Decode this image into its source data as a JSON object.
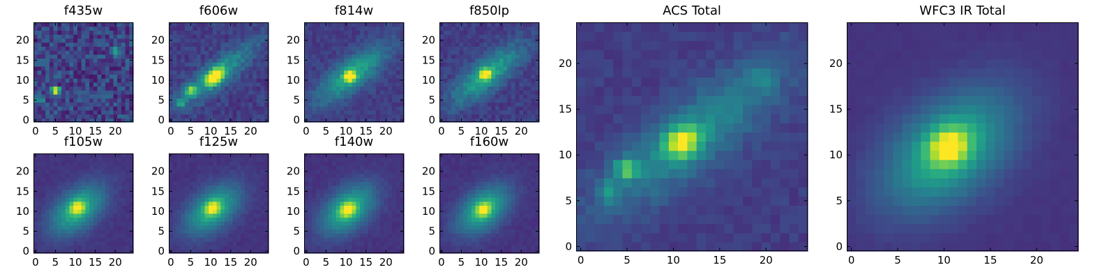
{
  "figure": {
    "titles": {
      "f435w": "f435w",
      "f606w": "f606w",
      "f814w": "f814w",
      "f850lp": "f850lp",
      "f105w": "f105w",
      "f125w": "f125w",
      "f140w": "f140w",
      "f160w": "f160w",
      "acs_total": "ACS Total",
      "wfc3_total": "WFC3 IR Total"
    }
  },
  "chart_data": [
    {
      "type": "heatmap",
      "title": "f435w",
      "colormap": "viridis",
      "grid_size": 25,
      "x_ticks": [
        0,
        5,
        10,
        15,
        20
      ],
      "y_ticks": [
        0,
        5,
        10,
        15,
        20
      ],
      "xlim": [
        0,
        25
      ],
      "ylim": [
        0,
        25
      ],
      "sources": [
        {
          "x": 5.5,
          "y": 8,
          "amp": 0.85,
          "sx": 0.9,
          "sy": 0.6,
          "angle": 0
        },
        {
          "x": 20.5,
          "y": 18,
          "amp": 0.5,
          "sx": 0.8,
          "sy": 0.8,
          "angle": 0
        },
        {
          "x": 1.5,
          "y": 5.5,
          "amp": 0.35,
          "sx": 0.8,
          "sy": 0.8,
          "angle": 0
        }
      ],
      "background": 0.2,
      "noise": 0.14
    },
    {
      "type": "heatmap",
      "title": "f606w",
      "colormap": "viridis",
      "grid_size": 25,
      "x_ticks": [
        0,
        5,
        10,
        15,
        20
      ],
      "y_ticks": [
        0,
        5,
        10,
        15,
        20
      ],
      "xlim": [
        0,
        25
      ],
      "ylim": [
        0,
        25
      ],
      "sources": [
        {
          "x": 11.5,
          "y": 11.5,
          "amp": 0.7,
          "sx": 1.8,
          "sy": 1.2,
          "angle": 40
        },
        {
          "x": 5.5,
          "y": 8,
          "amp": 0.55,
          "sx": 1.0,
          "sy": 0.8,
          "angle": 0
        },
        {
          "x": 3,
          "y": 5,
          "amp": 0.35,
          "sx": 0.8,
          "sy": 0.8,
          "angle": 0
        },
        {
          "x": 12,
          "y": 12,
          "amp": 0.35,
          "sx": 8.5,
          "sy": 2.2,
          "angle": 38
        }
      ],
      "background": 0.18,
      "noise": 0.07
    },
    {
      "type": "heatmap",
      "title": "f814w",
      "colormap": "viridis",
      "grid_size": 25,
      "x_ticks": [
        0,
        5,
        10,
        15,
        20
      ],
      "y_ticks": [
        0,
        5,
        10,
        15,
        20
      ],
      "xlim": [
        0,
        25
      ],
      "ylim": [
        0,
        25
      ],
      "sources": [
        {
          "x": 11.5,
          "y": 11.5,
          "amp": 0.7,
          "sx": 1.0,
          "sy": 0.9,
          "angle": 0
        },
        {
          "x": 12,
          "y": 12,
          "amp": 0.42,
          "sx": 7.5,
          "sy": 2.6,
          "angle": 38
        }
      ],
      "background": 0.18,
      "noise": 0.05
    },
    {
      "type": "heatmap",
      "title": "f850lp",
      "colormap": "viridis",
      "grid_size": 25,
      "x_ticks": [
        0,
        5,
        10,
        15,
        20
      ],
      "y_ticks": [
        0,
        5,
        10,
        15,
        20
      ],
      "xlim": [
        0,
        25
      ],
      "ylim": [
        0,
        25
      ],
      "sources": [
        {
          "x": 11.5,
          "y": 12,
          "amp": 0.7,
          "sx": 1.0,
          "sy": 0.9,
          "angle": 0
        },
        {
          "x": 12,
          "y": 12,
          "amp": 0.42,
          "sx": 7.5,
          "sy": 2.6,
          "angle": 38
        }
      ],
      "background": 0.18,
      "noise": 0.06
    },
    {
      "type": "heatmap",
      "title": "f105w",
      "colormap": "viridis",
      "grid_size": 25,
      "x_ticks": [
        0,
        5,
        10,
        15,
        20
      ],
      "y_ticks": [
        0,
        5,
        10,
        15,
        20
      ],
      "xlim": [
        0,
        25
      ],
      "ylim": [
        0,
        25
      ],
      "sources": [
        {
          "x": 11,
          "y": 11.5,
          "amp": 0.5,
          "sx": 1.3,
          "sy": 1.1,
          "angle": 30
        },
        {
          "x": 11,
          "y": 11,
          "amp": 0.5,
          "sx": 5.5,
          "sy": 3.2,
          "angle": 40
        }
      ],
      "background": 0.15,
      "noise": 0.025
    },
    {
      "type": "heatmap",
      "title": "f125w",
      "colormap": "viridis",
      "grid_size": 25,
      "x_ticks": [
        0,
        5,
        10,
        15,
        20
      ],
      "y_ticks": [
        0,
        5,
        10,
        15,
        20
      ],
      "xlim": [
        0,
        25
      ],
      "ylim": [
        0,
        25
      ],
      "sources": [
        {
          "x": 11,
          "y": 11.5,
          "amp": 0.5,
          "sx": 1.3,
          "sy": 1.1,
          "angle": 30
        },
        {
          "x": 11,
          "y": 11,
          "amp": 0.5,
          "sx": 5.5,
          "sy": 3.2,
          "angle": 40
        }
      ],
      "background": 0.15,
      "noise": 0.025
    },
    {
      "type": "heatmap",
      "title": "f140w",
      "colormap": "viridis",
      "grid_size": 25,
      "x_ticks": [
        0,
        5,
        10,
        15,
        20
      ],
      "y_ticks": [
        0,
        5,
        10,
        15,
        20
      ],
      "xlim": [
        0,
        25
      ],
      "ylim": [
        0,
        25
      ],
      "sources": [
        {
          "x": 11,
          "y": 11,
          "amp": 0.5,
          "sx": 1.4,
          "sy": 1.2,
          "angle": 30
        },
        {
          "x": 11,
          "y": 11,
          "amp": 0.5,
          "sx": 5.5,
          "sy": 3.3,
          "angle": 40
        }
      ],
      "background": 0.15,
      "noise": 0.025
    },
    {
      "type": "heatmap",
      "title": "f160w",
      "colormap": "viridis",
      "grid_size": 25,
      "x_ticks": [
        0,
        5,
        10,
        15,
        20
      ],
      "y_ticks": [
        0,
        5,
        10,
        15,
        20
      ],
      "xlim": [
        0,
        25
      ],
      "ylim": [
        0,
        25
      ],
      "sources": [
        {
          "x": 11,
          "y": 11,
          "amp": 0.5,
          "sx": 1.3,
          "sy": 1.1,
          "angle": 30
        },
        {
          "x": 11,
          "y": 11,
          "amp": 0.5,
          "sx": 5.3,
          "sy": 3.2,
          "angle": 40
        }
      ],
      "background": 0.15,
      "noise": 0.025
    },
    {
      "type": "heatmap",
      "title": "ACS Total",
      "colormap": "viridis",
      "grid_size": 25,
      "x_ticks": [
        0,
        5,
        10,
        15,
        20
      ],
      "y_ticks": [
        0,
        5,
        10,
        15,
        20
      ],
      "xlim": [
        0,
        25
      ],
      "ylim": [
        0,
        25
      ],
      "sources": [
        {
          "x": 11.5,
          "y": 12,
          "amp": 0.62,
          "sx": 1.4,
          "sy": 1.1,
          "angle": 30
        },
        {
          "x": 5.5,
          "y": 9,
          "amp": 0.42,
          "sx": 1.0,
          "sy": 0.8,
          "angle": 0
        },
        {
          "x": 3.5,
          "y": 6.5,
          "amp": 0.22,
          "sx": 0.9,
          "sy": 0.9,
          "angle": 0
        },
        {
          "x": 20,
          "y": 19,
          "amp": 0.18,
          "sx": 1.0,
          "sy": 1.0,
          "angle": 0
        },
        {
          "x": 12.5,
          "y": 12.5,
          "amp": 0.3,
          "sx": 8.5,
          "sy": 2.6,
          "angle": 38
        }
      ],
      "background": 0.18,
      "noise": 0.04
    },
    {
      "type": "heatmap",
      "title": "WFC3 IR Total",
      "colormap": "viridis",
      "grid_size": 25,
      "x_ticks": [
        0,
        5,
        10,
        15,
        20
      ],
      "y_ticks": [
        0,
        5,
        10,
        15,
        20
      ],
      "xlim": [
        0,
        25
      ],
      "ylim": [
        0,
        25
      ],
      "sources": [
        {
          "x": 11,
          "y": 11.5,
          "amp": 0.52,
          "sx": 1.5,
          "sy": 1.3,
          "angle": 30
        },
        {
          "x": 11,
          "y": 11,
          "amp": 0.5,
          "sx": 5.5,
          "sy": 3.4,
          "angle": 40
        }
      ],
      "background": 0.15,
      "noise": 0.012
    }
  ]
}
